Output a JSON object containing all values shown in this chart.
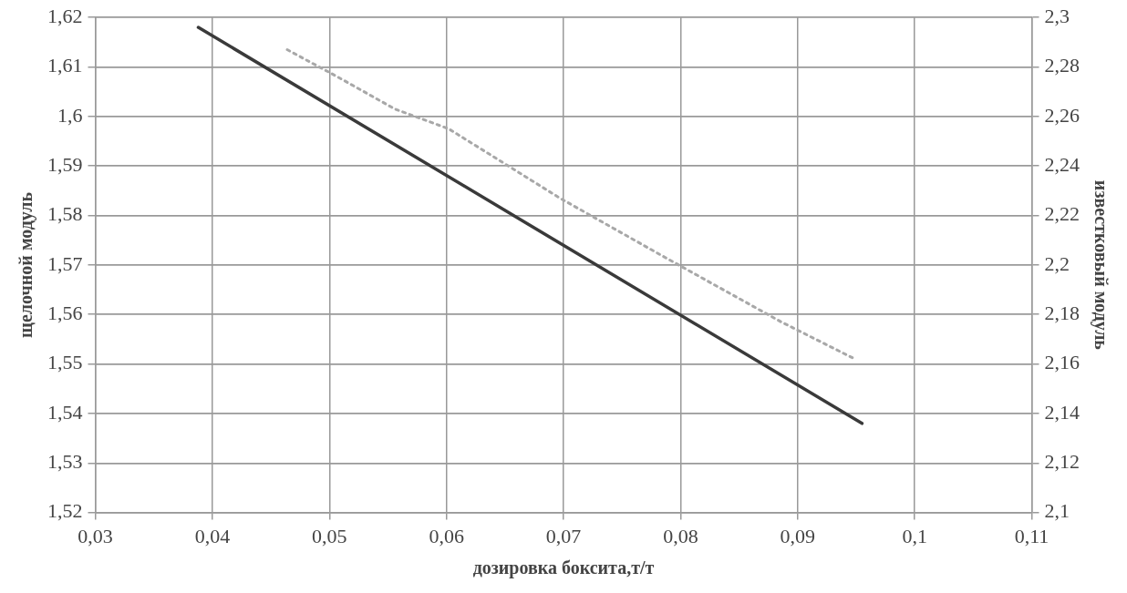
{
  "chart_data": {
    "type": "line",
    "xlabel": "дозировка боксита,т/т",
    "ylabel": "щелочной модуль",
    "y2label": "известковый модуль",
    "series": [
      {
        "color": "#3a3a3a",
        "x": [
          0.0388,
          0.0955
        ],
        "values": [
          1.618,
          1.538
        ],
        "line_style": "solid"
      },
      {
        "color": "#a8a8a8",
        "x": [
          0.0464,
          0.0507,
          0.0556,
          0.0602,
          0.0697,
          0.0787,
          0.0886,
          0.0949
        ],
        "values": [
          2.287,
          2.276,
          2.263,
          2.255,
          2.227,
          2.203,
          2.177,
          2.162
        ],
        "axis": "y2",
        "line_style": "dotted"
      }
    ],
    "xlim": [
      0.03,
      0.11
    ],
    "xticks": [
      {
        "value": 0.03,
        "label": "0,03"
      },
      {
        "value": 0.04,
        "label": "0,04"
      },
      {
        "value": 0.05,
        "label": "0,05"
      },
      {
        "value": 0.06,
        "label": "0,06"
      },
      {
        "value": 0.07,
        "label": "0,07"
      },
      {
        "value": 0.08,
        "label": "0,08"
      },
      {
        "value": 0.09,
        "label": "0,09"
      },
      {
        "value": 0.1,
        "label": "0,1"
      },
      {
        "value": 0.11,
        "label": "0,11"
      }
    ],
    "ylim": [
      1.52,
      1.62
    ],
    "yticks": [
      {
        "value": 1.52,
        "label": "1,52"
      },
      {
        "value": 1.53,
        "label": "1,53"
      },
      {
        "value": 1.54,
        "label": "1,54"
      },
      {
        "value": 1.55,
        "label": "1,55"
      },
      {
        "value": 1.56,
        "label": "1,56"
      },
      {
        "value": 1.57,
        "label": "1,57"
      },
      {
        "value": 1.58,
        "label": "1,58"
      },
      {
        "value": 1.59,
        "label": "1,59"
      },
      {
        "value": 1.6,
        "label": "1,6"
      },
      {
        "value": 1.61,
        "label": "1,61"
      },
      {
        "value": 1.62,
        "label": "1,62"
      }
    ],
    "y2lim": [
      2.1,
      2.3
    ],
    "y2ticks": [
      {
        "value": 2.1,
        "label": "2,1"
      },
      {
        "value": 2.12,
        "label": "2,12"
      },
      {
        "value": 2.14,
        "label": "2,14"
      },
      {
        "value": 2.16,
        "label": "2,16"
      },
      {
        "value": 2.18,
        "label": "2,18"
      },
      {
        "value": 2.2,
        "label": "2,2"
      },
      {
        "value": 2.22,
        "label": "2,22"
      },
      {
        "value": 2.24,
        "label": "2,24"
      },
      {
        "value": 2.26,
        "label": "2,26"
      },
      {
        "value": 2.28,
        "label": "2,28"
      },
      {
        "value": 2.3,
        "label": "2,3"
      }
    ],
    "grid": true,
    "legend": false,
    "marker": "none"
  }
}
